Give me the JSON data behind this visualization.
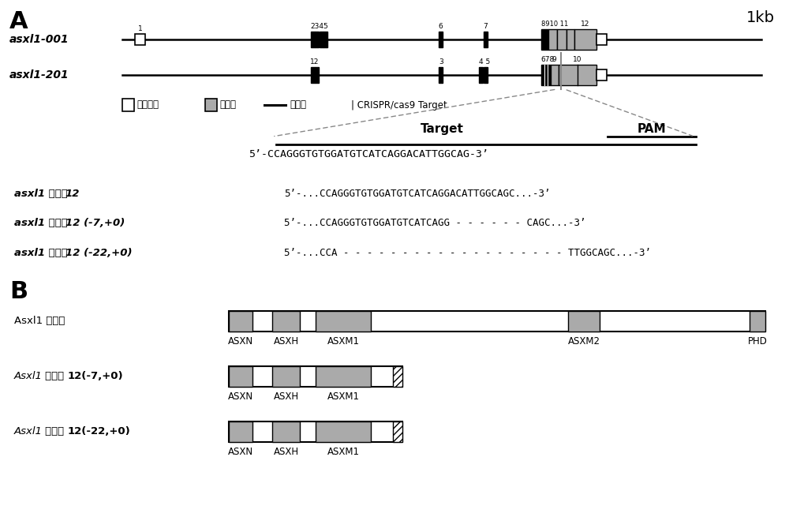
{
  "title_A": "A",
  "title_B": "B",
  "scale_label": "1kb",
  "gene1_label": "asxl1-001",
  "gene2_label": "asxl1-201",
  "legend_noncoding": "非编码区",
  "legend_exon": "外显子",
  "legend_intron": "内含子",
  "crispr_label": "| CRISPR/cas9 Target",
  "target_label": "Target",
  "pam_label": "PAM",
  "sequence_line": "5’-CCAGGGTGTGGATGTCATCAGGACATTGGCAG-3’",
  "seq1_prefix": "asxl1 外显子",
  "seq1_bold": "12",
  "seq1_seq": "5’-...CCAGGGTGTGGATGTCATCAGGACATTGGCAGC...-3’",
  "seq2_prefix": "asxl1 外显子",
  "seq2_bold": "12 (-7,+0)",
  "seq2_seq": "5’-...CCAGGGTGTGGATGTCATCAGG - - - - - - CAGC...-3’",
  "seq3_prefix": "asxl1 外显子",
  "seq3_bold": "12 (-22,+0)",
  "seq3_seq": "5’-...CCA - - - - - - - - - - - - - - - - - - - TTGGCAGC...-3’",
  "prot1_prefix": "Asxl1 ",
  "prot1_cn": "野生型",
  "prot2_prefix": "Asxl1 外显子",
  "prot2_bold": "12(-7,+0)",
  "prot3_prefix": "Asxl1 外显子",
  "prot3_bold": "12(-22,+0)",
  "gray_color": "#aaaaaa",
  "black_color": "#000000",
  "white_color": "#ffffff",
  "bg_color": "#ffffff"
}
